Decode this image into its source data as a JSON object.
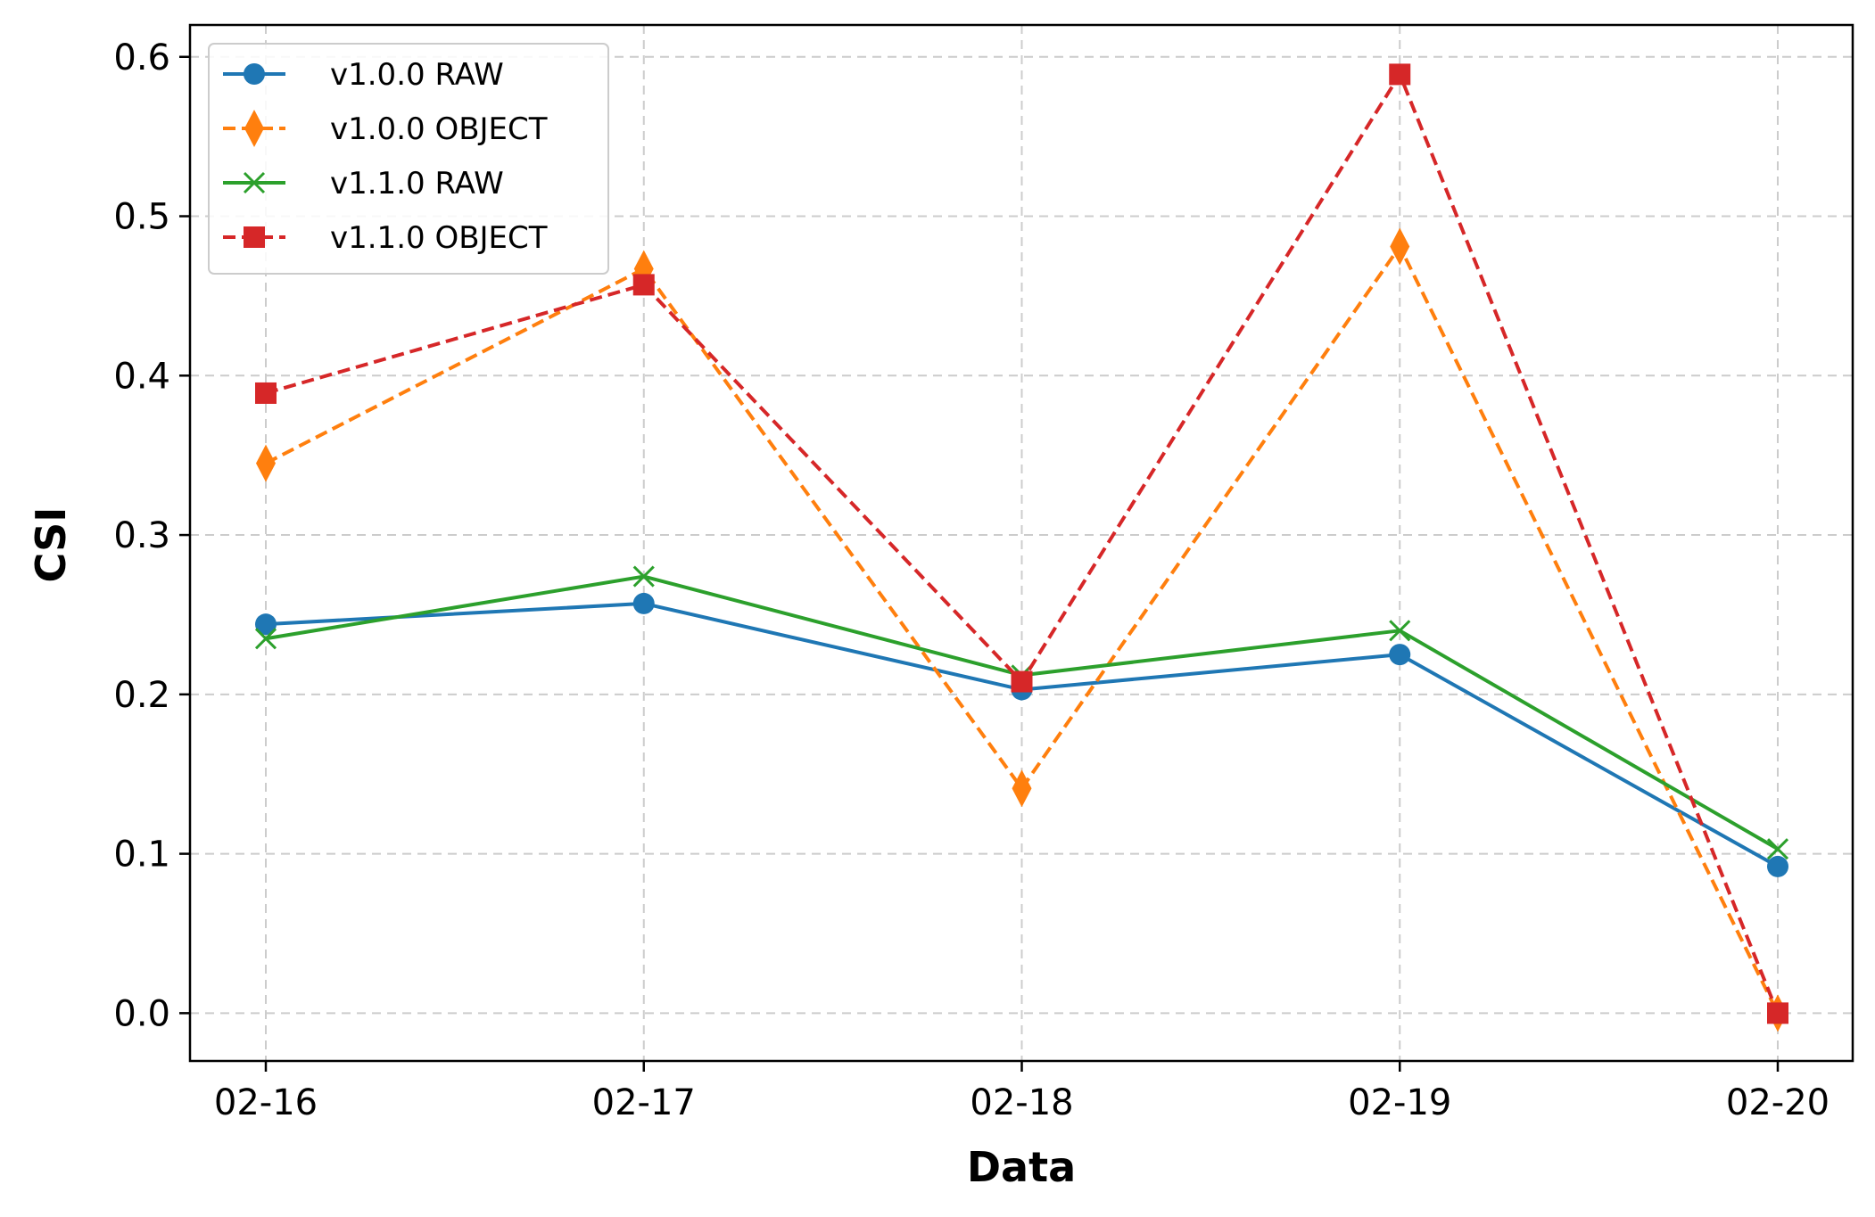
{
  "chart_data": {
    "type": "line",
    "title": "",
    "xlabel": "Data",
    "ylabel": "CSI",
    "categories": [
      "02-16",
      "02-17",
      "02-18",
      "02-19",
      "02-20"
    ],
    "ylim": [
      -0.03,
      0.62
    ],
    "yticks": [
      "0.0",
      "0.1",
      "0.2",
      "0.3",
      "0.4",
      "0.5",
      "0.6"
    ],
    "grid": true,
    "legend_position": "top-left",
    "series": [
      {
        "name": "v1.0.0 RAW",
        "values": [
          0.244,
          0.257,
          0.203,
          0.225,
          0.092
        ],
        "color": "#1f77b4",
        "marker": "circle",
        "line_style": "solid"
      },
      {
        "name": "v1.0.0 OBJECT",
        "values": [
          0.345,
          0.467,
          0.141,
          0.481,
          0.0
        ],
        "color": "#ff7f0e",
        "marker": "diamond",
        "line_style": "dashed"
      },
      {
        "name": "v1.1.0 RAW",
        "values": [
          0.235,
          0.274,
          0.212,
          0.24,
          0.103
        ],
        "color": "#2ca02c",
        "marker": "x",
        "line_style": "solid"
      },
      {
        "name": "v1.1.0 OBJECT",
        "values": [
          0.389,
          0.457,
          0.208,
          0.589,
          0.0
        ],
        "color": "#d62728",
        "marker": "square",
        "line_style": "dashed"
      }
    ]
  }
}
